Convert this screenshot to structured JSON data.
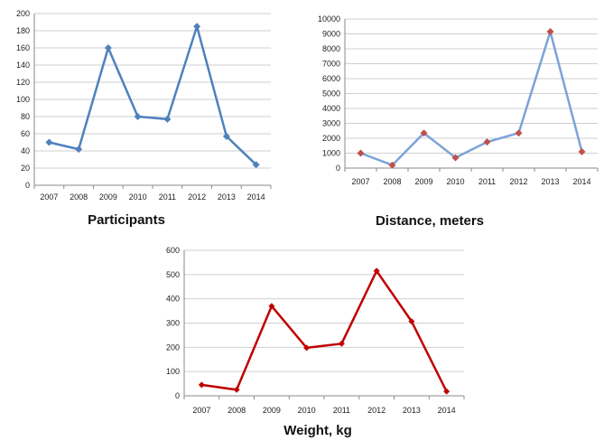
{
  "chart_data": [
    {
      "type": "line",
      "title": "Participants",
      "x": [
        "2007",
        "2008",
        "2009",
        "2010",
        "2011",
        "2012",
        "2013",
        "2014"
      ],
      "series": [
        {
          "values": [
            50,
            42,
            160,
            80,
            77,
            185,
            57,
            24
          ]
        }
      ],
      "ylim": [
        0,
        200
      ],
      "yticks": [
        0,
        20,
        40,
        60,
        80,
        100,
        120,
        140,
        160,
        180,
        200
      ],
      "grid": true,
      "line_color": "#4f81bd",
      "marker_color": "#4f81bd"
    },
    {
      "type": "line",
      "title": "Distance, meters",
      "x": [
        "2007",
        "2008",
        "2009",
        "2010",
        "2011",
        "2012",
        "2013",
        "2014"
      ],
      "series": [
        {
          "values": [
            1000,
            200,
            2350,
            700,
            1750,
            2350,
            9150,
            1100
          ]
        }
      ],
      "ylim": [
        0,
        10000
      ],
      "yticks": [
        0,
        1000,
        2000,
        3000,
        4000,
        5000,
        6000,
        7000,
        8000,
        9000,
        10000
      ],
      "grid": true,
      "line_color": "#7ba3d8",
      "marker_color": "#c0504d"
    },
    {
      "type": "line",
      "title": "Weight, kg",
      "x": [
        "2007",
        "2008",
        "2009",
        "2010",
        "2011",
        "2012",
        "2013",
        "2014"
      ],
      "series": [
        {
          "values": [
            45,
            25,
            370,
            198,
            215,
            515,
            307,
            18
          ]
        }
      ],
      "ylim": [
        0,
        600
      ],
      "yticks": [
        0,
        100,
        200,
        300,
        400,
        500,
        600
      ],
      "grid": true,
      "line_color": "#c00000",
      "marker_color": "#c00000"
    }
  ]
}
